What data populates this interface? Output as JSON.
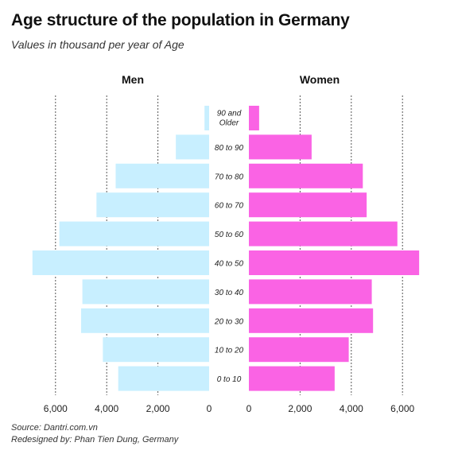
{
  "title": "Age structure of the population in Germany",
  "subtitle": "Values in thousand per year of Age",
  "source_line": "Source: Dantri.com.vn",
  "credit_line": "Redesigned by: Phan Tien Dung, Germany",
  "colors": {
    "men": "#c8efff",
    "women": "#fa63e4",
    "grid": "#555555"
  },
  "chart_data": {
    "type": "bar",
    "orientation": "horizontal-diverging",
    "categories": [
      "90 and Older",
      "80 to 90",
      "70 to 80",
      "60 to 70",
      "50 to 60",
      "40 to 50",
      "30 to 40",
      "20 to 30",
      "10 to 20",
      "0 to 10"
    ],
    "series": [
      {
        "name": "Men",
        "values": [
          180,
          1300,
          3650,
          4400,
          5850,
          6900,
          4950,
          5000,
          4150,
          3550
        ]
      },
      {
        "name": "Women",
        "values": [
          400,
          2450,
          4450,
          4600,
          5800,
          6650,
          4800,
          4850,
          3900,
          3350
        ]
      }
    ],
    "xlim": [
      0,
      6000
    ],
    "xticks": [
      0,
      2000,
      4000,
      6000
    ],
    "xtick_labels": [
      "0",
      "2,000",
      "4,000",
      "6,000"
    ],
    "grid": true,
    "grid_style": "dotted-vertical"
  }
}
